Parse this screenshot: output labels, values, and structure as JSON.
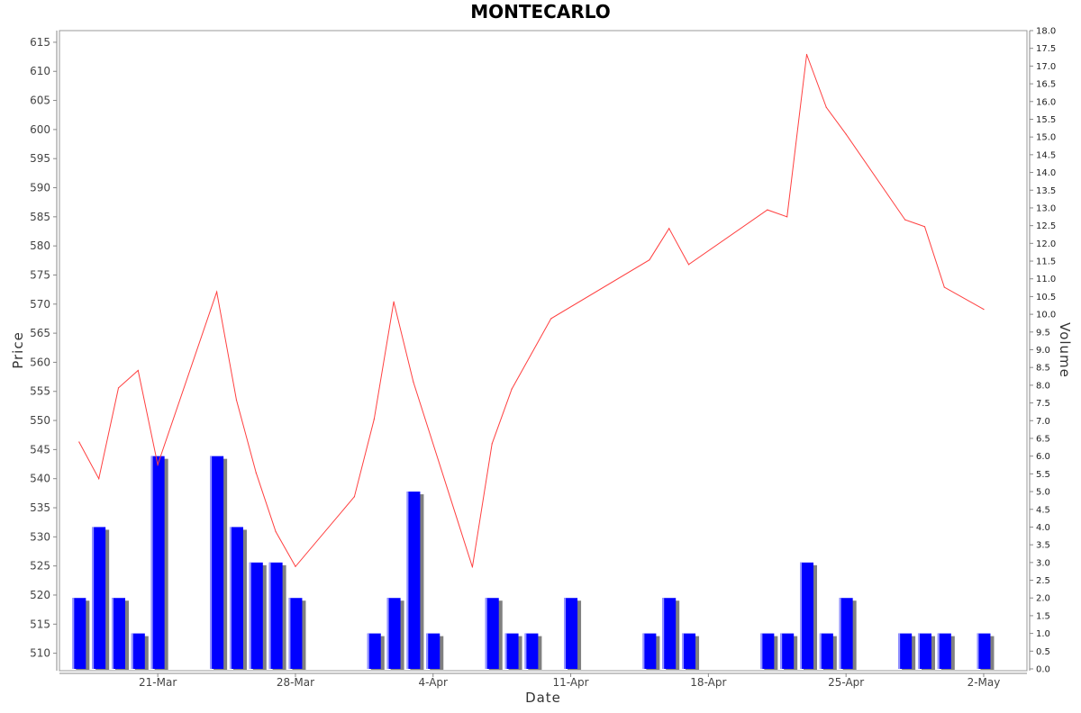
{
  "chart_data": {
    "type": "line",
    "title": "MONTECARLO",
    "xlabel": "Date",
    "ylabel": "Price",
    "y2label": "Volume",
    "price_range": [
      507,
      617
    ],
    "volume_range": [
      0,
      18
    ],
    "price_ticks": [
      510,
      515,
      520,
      525,
      530,
      535,
      540,
      545,
      550,
      555,
      560,
      565,
      570,
      575,
      580,
      585,
      590,
      595,
      600,
      605,
      610,
      615
    ],
    "volume_ticks": [
      "0.0",
      "0.5",
      "1.0",
      "1.5",
      "2.0",
      "2.5",
      "3.0",
      "3.5",
      "4.0",
      "4.5",
      "5.0",
      "5.5",
      "6.0",
      "6.5",
      "7.0",
      "7.5",
      "8.0",
      "8.5",
      "9.0",
      "9.5",
      "10.0",
      "10.5",
      "11.0",
      "11.5",
      "12.0",
      "12.5",
      "13.0",
      "13.5",
      "14.0",
      "14.5",
      "15.0",
      "15.5",
      "16.0",
      "16.5",
      "17.0",
      "17.5",
      "18.0"
    ],
    "date_ticks": [
      {
        "label": "21-Mar",
        "day": 21
      },
      {
        "label": "28-Mar",
        "day": 28
      },
      {
        "label": "4-Apr",
        "day": 35
      },
      {
        "label": "11-Apr",
        "day": 42
      },
      {
        "label": "18-Apr",
        "day": 49
      },
      {
        "label": "25-Apr",
        "day": 56
      },
      {
        "label": "2-May",
        "day": 63
      }
    ],
    "x_range": [
      16.0,
      65.2
    ],
    "grid": false,
    "colors": {
      "price_line": "#ff4040",
      "volume_bar": "#0000ff",
      "volume_shadow": "#808080",
      "bar_highlight": "#9999ff",
      "axis": "#888888",
      "frame": "#999999"
    },
    "price_series": [
      {
        "day": 17,
        "price": 546.3
      },
      {
        "day": 18,
        "price": 540.0
      },
      {
        "day": 19,
        "price": 555.6
      },
      {
        "day": 20,
        "price": 558.6
      },
      {
        "day": 21,
        "price": 542.4
      },
      {
        "day": 24,
        "price": 572.1
      },
      {
        "day": 25,
        "price": 553.5
      },
      {
        "day": 26,
        "price": 541.0
      },
      {
        "day": 27,
        "price": 530.9
      },
      {
        "day": 28,
        "price": 524.9
      },
      {
        "day": 31,
        "price": 536.9
      },
      {
        "day": 32,
        "price": 550.2
      },
      {
        "day": 33,
        "price": 570.4
      },
      {
        "day": 34,
        "price": 556.6
      },
      {
        "day": 37,
        "price": 524.8
      },
      {
        "day": 38,
        "price": 546.0
      },
      {
        "day": 39,
        "price": 555.4
      },
      {
        "day": 41,
        "price": 567.5
      },
      {
        "day": 46,
        "price": 577.6
      },
      {
        "day": 47,
        "price": 583.0
      },
      {
        "day": 48,
        "price": 576.8
      },
      {
        "day": 52,
        "price": 586.2
      },
      {
        "day": 53,
        "price": 585.0
      },
      {
        "day": 54,
        "price": 612.9
      },
      {
        "day": 55,
        "price": 603.8
      },
      {
        "day": 56,
        "price": 599.2
      },
      {
        "day": 59,
        "price": 584.5
      },
      {
        "day": 60,
        "price": 583.3
      },
      {
        "day": 61,
        "price": 572.9
      },
      {
        "day": 63,
        "price": 569.1
      }
    ],
    "volume_series": [
      {
        "day": 17,
        "volume": 2.0
      },
      {
        "day": 18,
        "volume": 4.0
      },
      {
        "day": 19,
        "volume": 2.0
      },
      {
        "day": 20,
        "volume": 1.0
      },
      {
        "day": 21,
        "volume": 6.0
      },
      {
        "day": 24,
        "volume": 6.0
      },
      {
        "day": 25,
        "volume": 4.0
      },
      {
        "day": 26,
        "volume": 3.0
      },
      {
        "day": 27,
        "volume": 3.0
      },
      {
        "day": 28,
        "volume": 2.0
      },
      {
        "day": 32,
        "volume": 1.0
      },
      {
        "day": 33,
        "volume": 2.0
      },
      {
        "day": 34,
        "volume": 5.0
      },
      {
        "day": 35,
        "volume": 1.0
      },
      {
        "day": 38,
        "volume": 2.0
      },
      {
        "day": 39,
        "volume": 1.0
      },
      {
        "day": 40,
        "volume": 1.0
      },
      {
        "day": 42,
        "volume": 2.0
      },
      {
        "day": 46,
        "volume": 1.0
      },
      {
        "day": 47,
        "volume": 2.0
      },
      {
        "day": 48,
        "volume": 1.0
      },
      {
        "day": 52,
        "volume": 1.0
      },
      {
        "day": 53,
        "volume": 1.0
      },
      {
        "day": 54,
        "volume": 3.0
      },
      {
        "day": 55,
        "volume": 1.0
      },
      {
        "day": 56,
        "volume": 2.0
      },
      {
        "day": 59,
        "volume": 1.0
      },
      {
        "day": 60,
        "volume": 1.0
      },
      {
        "day": 61,
        "volume": 1.0
      },
      {
        "day": 63,
        "volume": 1.0
      }
    ]
  }
}
